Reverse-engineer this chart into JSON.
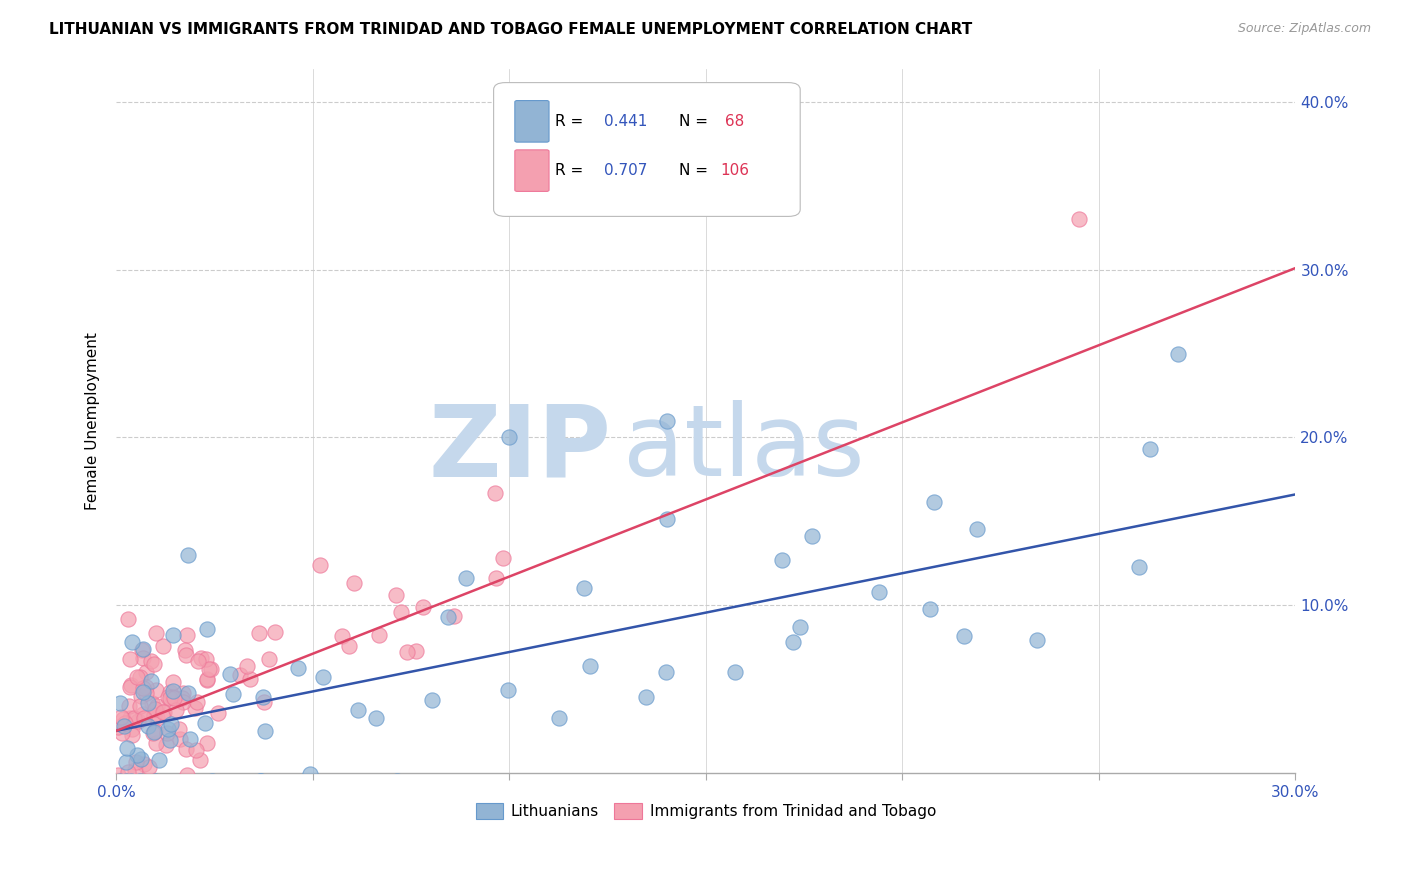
{
  "title": "LITHUANIAN VS IMMIGRANTS FROM TRINIDAD AND TOBAGO FEMALE UNEMPLOYMENT CORRELATION CHART",
  "source": "Source: ZipAtlas.com",
  "ylabel": "Female Unemployment",
  "xlim": [
    0.0,
    0.3
  ],
  "ylim": [
    0.0,
    0.42
  ],
  "ytick_positions": [
    0.1,
    0.2,
    0.3,
    0.4
  ],
  "ytick_labels": [
    "10.0%",
    "20.0%",
    "30.0%",
    "40.0%"
  ],
  "xtick_positions": [
    0.0,
    0.05,
    0.1,
    0.15,
    0.2,
    0.25,
    0.3
  ],
  "xtick_labels": [
    "0.0%",
    "",
    "",
    "",
    "",
    "",
    "30.0%"
  ],
  "blue_color": "#92B4D4",
  "pink_color": "#F4A0B0",
  "blue_edge_color": "#6699CC",
  "pink_edge_color": "#EE7799",
  "blue_trend_color": "#3355AA",
  "pink_trend_color": "#DD4466",
  "blue_label": "Lithuanians",
  "pink_label": "Immigrants from Trinidad and Tobago",
  "blue_R": "0.441",
  "blue_N": " 68",
  "pink_R": "0.707",
  "pink_N": "106",
  "legend_text_color": "#3355BB",
  "legend_N_color": "#DD3355",
  "watermark_zip": "ZIP",
  "watermark_atlas": "atlas",
  "watermark_color": "#C5D8EC",
  "background_color": "#FFFFFF",
  "title_fontsize": 11,
  "source_fontsize": 9,
  "axis_label_fontsize": 11,
  "tick_fontsize": 11,
  "legend_fontsize": 11,
  "blue_seed": 42,
  "pink_seed": 123
}
